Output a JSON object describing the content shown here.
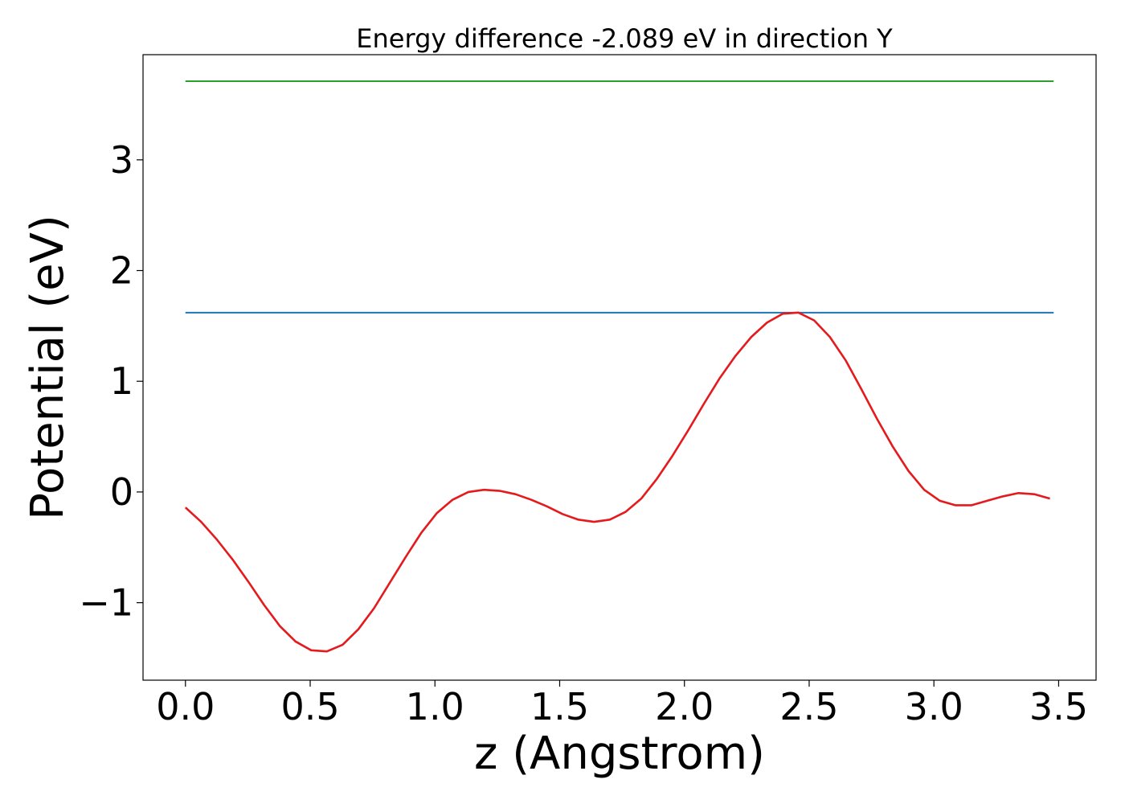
{
  "chart_data": {
    "type": "line",
    "title": "Energy difference -2.089 eV in direction Y",
    "xlabel": "z (Angstrom)",
    "ylabel": "Potential (eV)",
    "xlim": [
      -0.17,
      3.65
    ],
    "ylim": [
      -1.7,
      3.95
    ],
    "xticks": [
      0.0,
      0.5,
      1.0,
      1.5,
      2.0,
      2.5,
      3.0,
      3.5
    ],
    "xtick_labels": [
      "0.0",
      "0.5",
      "1.0",
      "1.5",
      "2.0",
      "2.5",
      "3.0",
      "3.5"
    ],
    "yticks": [
      -1,
      0,
      1,
      2,
      3
    ],
    "ytick_labels": [
      "−1",
      "0",
      "1",
      "2",
      "3"
    ],
    "grid": false,
    "series": [
      {
        "color": "#2ca02c",
        "x": [
          0.0,
          3.48
        ],
        "y": [
          3.71,
          3.71
        ]
      },
      {
        "color": "#1f77b4",
        "x": [
          0.0,
          3.48
        ],
        "y": [
          1.62,
          1.62
        ]
      },
      {
        "color": "#e41a1c",
        "x": [
          0.0,
          0.063,
          0.126,
          0.189,
          0.252,
          0.315,
          0.378,
          0.441,
          0.504,
          0.567,
          0.63,
          0.693,
          0.756,
          0.819,
          0.882,
          0.945,
          1.008,
          1.071,
          1.134,
          1.197,
          1.26,
          1.323,
          1.386,
          1.449,
          1.512,
          1.575,
          1.638,
          1.701,
          1.764,
          1.827,
          1.89,
          1.953,
          2.016,
          2.079,
          2.142,
          2.205,
          2.268,
          2.331,
          2.394,
          2.457,
          2.52,
          2.583,
          2.646,
          2.709,
          2.772,
          2.835,
          2.898,
          2.961,
          3.024,
          3.087,
          3.15,
          3.213,
          3.276,
          3.339,
          3.402,
          3.465
        ],
        "y": [
          -0.14,
          -0.27,
          -0.43,
          -0.61,
          -0.81,
          -1.02,
          -1.21,
          -1.35,
          -1.43,
          -1.44,
          -1.38,
          -1.24,
          -1.05,
          -0.82,
          -0.59,
          -0.37,
          -0.19,
          -0.07,
          0.0,
          0.02,
          0.01,
          -0.02,
          -0.07,
          -0.13,
          -0.2,
          -0.25,
          -0.27,
          -0.25,
          -0.18,
          -0.06,
          0.12,
          0.33,
          0.56,
          0.8,
          1.03,
          1.23,
          1.4,
          1.53,
          1.61,
          1.62,
          1.55,
          1.4,
          1.19,
          0.93,
          0.66,
          0.41,
          0.19,
          0.02,
          -0.08,
          -0.12,
          -0.12,
          -0.08,
          -0.04,
          -0.01,
          -0.02,
          -0.06
        ]
      }
    ]
  }
}
